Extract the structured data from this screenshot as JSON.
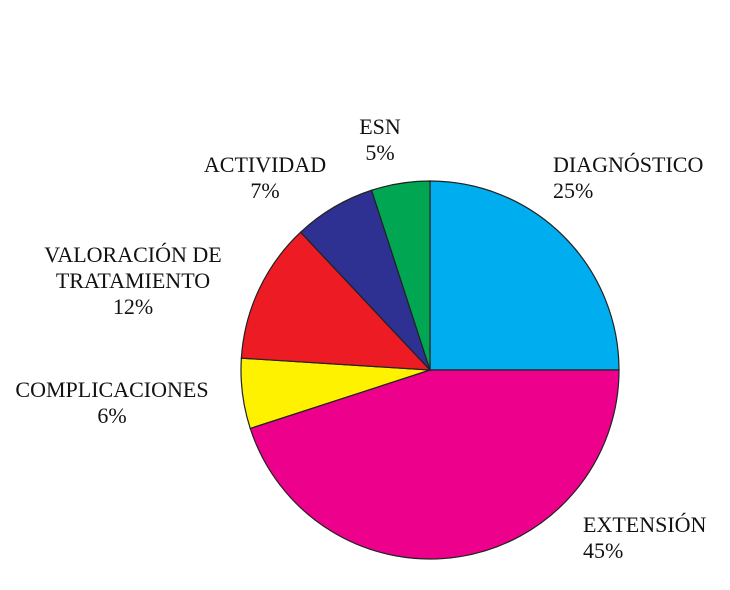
{
  "chart_data": {
    "type": "pie",
    "categories": [
      "DIAGNÓSTICO",
      "EXTENSIÓN",
      "COMPLICACIONES",
      "VALORACIÓN DE TRATAMIENTO",
      "ACTIVIDAD",
      "ESN"
    ],
    "values": [
      25,
      45,
      6,
      12,
      7,
      5
    ],
    "value_labels": [
      "25%",
      "45%",
      "6%",
      "12%",
      "7%",
      "5%"
    ],
    "colors": [
      "#00aeef",
      "#ec008c",
      "#fff200",
      "#ed1c24",
      "#2e3192",
      "#00a651"
    ]
  }
}
